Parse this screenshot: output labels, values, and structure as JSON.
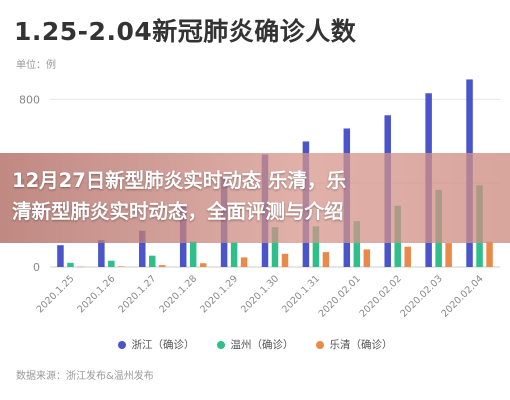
{
  "header": {
    "title": "1.25-2.04新冠肺炎确诊人数",
    "unit": "单位：例"
  },
  "banner": {
    "line1": "12月27日新型肺炎实时动态 乐清，乐",
    "line2": "清新型肺炎实时动态，全面评测与介绍"
  },
  "source": "数据来源：浙江发布&温州发布",
  "colors": {
    "zhejiang": "#4a55c9",
    "wenzhou": "#2fbf8a",
    "yueqing": "#e98a4a",
    "grid": "#e6e6e6",
    "tick_text": "#888888"
  },
  "chart_data": {
    "type": "bar",
    "title": "1.25-2.04新冠肺炎确诊人数",
    "categories": [
      "2020.1.25",
      "2020.1.26",
      "2020.1.27",
      "2020.1.28",
      "2020.1.29",
      "2020.1.30",
      "2020.1.31",
      "2020.02.01",
      "2020.02.02",
      "2020.02.03",
      "2020.02.04"
    ],
    "series": [
      {
        "name": "浙江（确诊）",
        "color": "#4a55c9",
        "values": [
          104,
          128,
          173,
          296,
          428,
          537,
          599,
          661,
          724,
          829,
          895
        ]
      },
      {
        "name": "温州（确诊）",
        "color": "#2fbf8a",
        "values": [
          20,
          30,
          54,
          121,
          117,
          190,
          194,
          219,
          292,
          368,
          390
        ]
      },
      {
        "name": "乐清（确诊）",
        "color": "#e98a4a",
        "values": [
          2,
          3,
          9,
          18,
          46,
          63,
          71,
          84,
          97,
          114,
          120
        ]
      }
    ],
    "yticks": [
      0,
      400,
      800
    ],
    "ylim": [
      0,
      940
    ],
    "grid": true,
    "legend_position": "bottom"
  }
}
